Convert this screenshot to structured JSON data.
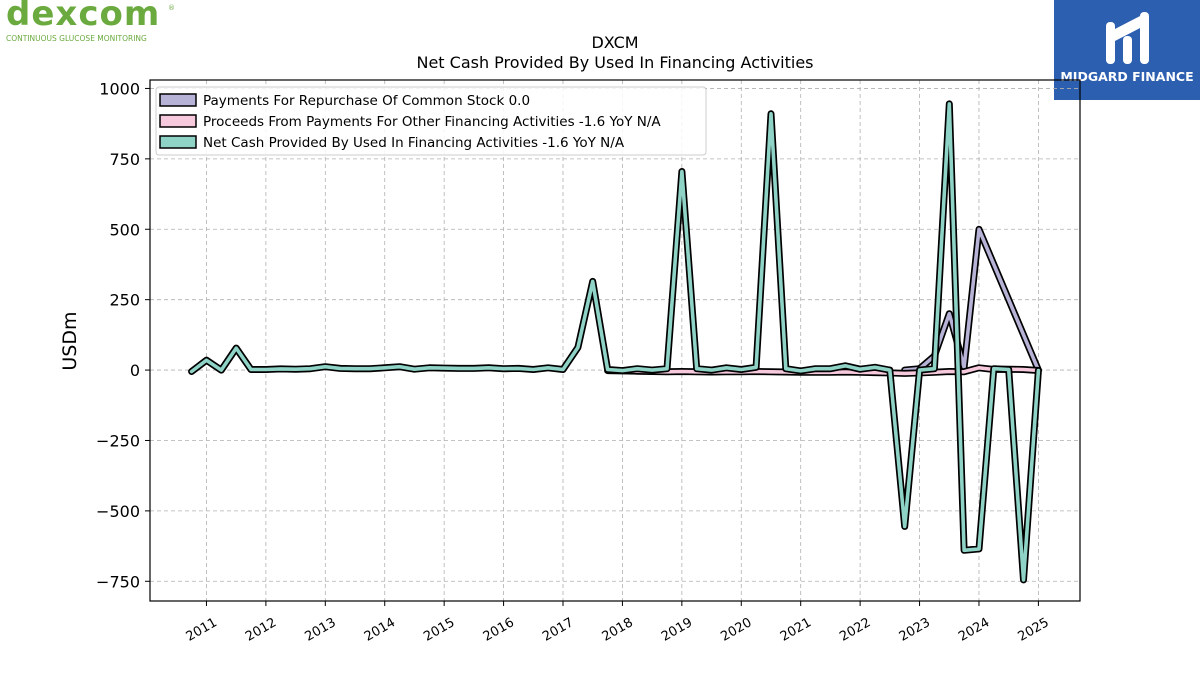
{
  "branding": {
    "left_logo": {
      "word": "dexcom",
      "registered": "®",
      "tagline": "CONTINUOUS GLUCOSE MONITORING"
    },
    "right_logo": {
      "text": "MIDGARD FINANCE"
    }
  },
  "chart_data": {
    "type": "line",
    "title": "DXCM",
    "subtitle": "Net Cash Provided By Used In Financing Activities",
    "ylabel": "USDm",
    "xlabel": "",
    "ylim": [
      -820,
      1030
    ],
    "xlim": [
      2010.05,
      2025.7
    ],
    "yticks": [
      -750,
      -500,
      -250,
      0,
      250,
      500,
      750,
      1000
    ],
    "ytick_labels": [
      "−750",
      "−500",
      "−250",
      "0",
      "250",
      "500",
      "750",
      "1000"
    ],
    "xticks": [
      2011,
      2012,
      2013,
      2014,
      2015,
      2016,
      2017,
      2018,
      2019,
      2020,
      2021,
      2022,
      2023,
      2024,
      2025
    ],
    "xtick_labels": [
      "2011",
      "2012",
      "2013",
      "2014",
      "2015",
      "2016",
      "2017",
      "2018",
      "2019",
      "2020",
      "2021",
      "2022",
      "2023",
      "2024",
      "2025"
    ],
    "grid": true,
    "legend_position": "top-left",
    "series": [
      {
        "name": "Payments For Repurchase Of Common Stock",
        "legend_label": "Payments For Repurchase Of Common Stock  0.0",
        "color": "#b7b3d6",
        "points": [
          [
            2022.75,
            0
          ],
          [
            2023.0,
            5
          ],
          [
            2023.25,
            50
          ],
          [
            2023.5,
            200
          ],
          [
            2023.75,
            10
          ],
          [
            2024.0,
            500
          ],
          [
            2025.0,
            0
          ]
        ]
      },
      {
        "name": "Proceeds From Payments For Other Financing Activities",
        "legend_label": "Proceeds From Payments For Other Financing Activities  -1.6 YoY N/A",
        "color": "#f6c9dc",
        "points": [
          [
            2017.75,
            -2
          ],
          [
            2018.0,
            -3
          ],
          [
            2018.25,
            -4
          ],
          [
            2018.5,
            -5
          ],
          [
            2018.75,
            -6
          ],
          [
            2019.0,
            -5
          ],
          [
            2019.25,
            -6
          ],
          [
            2019.5,
            -7
          ],
          [
            2019.75,
            -6
          ],
          [
            2020.0,
            -6
          ],
          [
            2020.25,
            -5
          ],
          [
            2020.5,
            -6
          ],
          [
            2020.75,
            -7
          ],
          [
            2021.0,
            -8
          ],
          [
            2021.25,
            -8
          ],
          [
            2021.5,
            -8
          ],
          [
            2021.75,
            -7
          ],
          [
            2022.0,
            -8
          ],
          [
            2022.25,
            -9
          ],
          [
            2022.5,
            -10
          ],
          [
            2022.75,
            -12
          ],
          [
            2023.0,
            -10
          ],
          [
            2023.25,
            -8
          ],
          [
            2023.5,
            -5
          ],
          [
            2023.75,
            -6
          ],
          [
            2024.0,
            8
          ],
          [
            2024.25,
            2
          ],
          [
            2024.5,
            3
          ],
          [
            2024.75,
            2
          ],
          [
            2025.0,
            -1.6
          ]
        ]
      },
      {
        "name": "Net Cash Provided By Used In Financing Activities",
        "legend_label": "Net Cash Provided By Used In Financing Activities  -1.6 YoY N/A",
        "color": "#8fd3c6",
        "points": [
          [
            2010.75,
            -5
          ],
          [
            2011.0,
            35
          ],
          [
            2011.25,
            0
          ],
          [
            2011.5,
            78
          ],
          [
            2011.75,
            2
          ],
          [
            2012.0,
            2
          ],
          [
            2012.25,
            4
          ],
          [
            2012.5,
            3
          ],
          [
            2012.75,
            5
          ],
          [
            2013.0,
            12
          ],
          [
            2013.25,
            6
          ],
          [
            2013.5,
            5
          ],
          [
            2013.75,
            5
          ],
          [
            2014.0,
            8
          ],
          [
            2014.25,
            12
          ],
          [
            2014.5,
            3
          ],
          [
            2014.75,
            8
          ],
          [
            2015.0,
            7
          ],
          [
            2015.25,
            6
          ],
          [
            2015.5,
            6
          ],
          [
            2015.75,
            8
          ],
          [
            2016.0,
            5
          ],
          [
            2016.25,
            6
          ],
          [
            2016.5,
            2
          ],
          [
            2016.75,
            8
          ],
          [
            2017.0,
            2
          ],
          [
            2017.25,
            80
          ],
          [
            2017.5,
            315
          ],
          [
            2017.75,
            2
          ],
          [
            2018.0,
            -2
          ],
          [
            2018.25,
            5
          ],
          [
            2018.5,
            0
          ],
          [
            2018.75,
            5
          ],
          [
            2019.0,
            705
          ],
          [
            2019.25,
            5
          ],
          [
            2019.5,
            0
          ],
          [
            2019.75,
            8
          ],
          [
            2020.0,
            2
          ],
          [
            2020.25,
            10
          ],
          [
            2020.5,
            910
          ],
          [
            2020.75,
            5
          ],
          [
            2021.0,
            -3
          ],
          [
            2021.25,
            5
          ],
          [
            2021.5,
            5
          ],
          [
            2021.75,
            15
          ],
          [
            2022.0,
            3
          ],
          [
            2022.25,
            10
          ],
          [
            2022.5,
            0
          ],
          [
            2022.75,
            -555
          ],
          [
            2023.0,
            0
          ],
          [
            2023.25,
            5
          ],
          [
            2023.5,
            945
          ],
          [
            2023.75,
            -640
          ],
          [
            2024.0,
            -635
          ],
          [
            2024.25,
            5
          ],
          [
            2024.5,
            2
          ],
          [
            2024.75,
            -745
          ],
          [
            2025.0,
            -1.6
          ]
        ]
      }
    ]
  }
}
